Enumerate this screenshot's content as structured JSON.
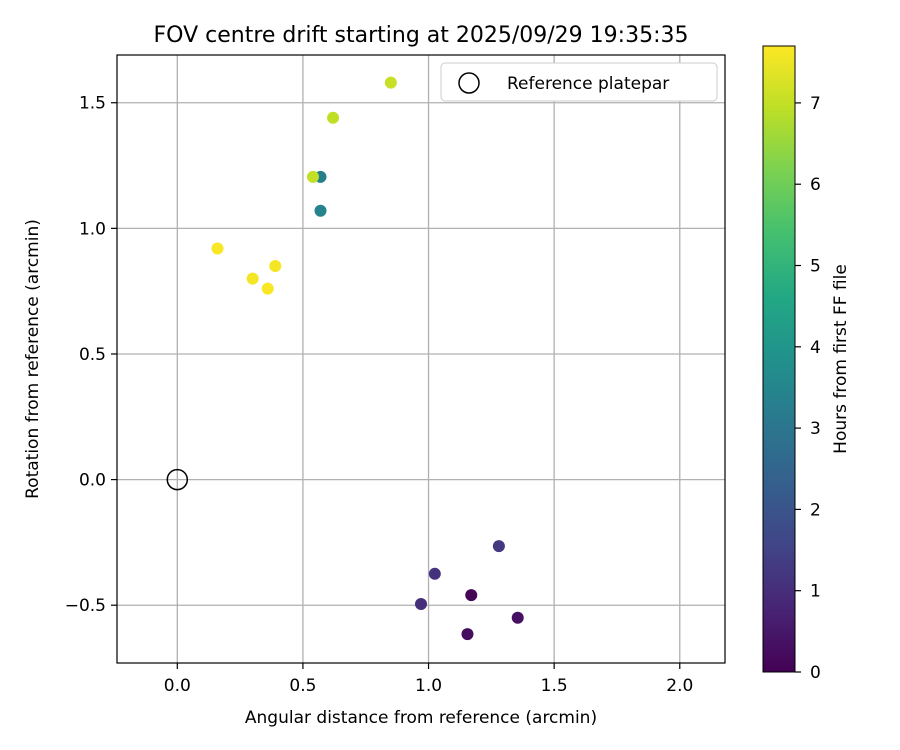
{
  "chart_data": {
    "type": "scatter",
    "title": "FOV centre drift starting at 2025/09/29 19:35:35",
    "xlabel": "Angular distance from reference (arcmin)",
    "ylabel": "Rotation from reference (arcmin)",
    "xlim": [
      -0.24,
      2.18
    ],
    "ylim": [
      -0.73,
      1.69
    ],
    "xticks": [
      0.0,
      0.5,
      1.0,
      1.5,
      2.0
    ],
    "xtick_labels": [
      "0.0",
      "0.5",
      "1.0",
      "1.5",
      "2.0"
    ],
    "yticks": [
      -0.5,
      0.0,
      0.5,
      1.0,
      1.5
    ],
    "ytick_labels": [
      "−0.5",
      "0.0",
      "0.5",
      "1.0",
      "1.5"
    ],
    "grid": true,
    "legend": {
      "position": "top-right",
      "entries": [
        "Reference platepar"
      ]
    },
    "reference_point": {
      "x": 0.0,
      "y": 0.0,
      "label": "Reference platepar"
    },
    "colorbar": {
      "label": "Hours from first FF file",
      "min": 0,
      "max": 7.7,
      "ticks": [
        0,
        1,
        2,
        3,
        4,
        5,
        6,
        7
      ],
      "tick_labels": [
        "0",
        "1",
        "2",
        "3",
        "4",
        "5",
        "6",
        "7"
      ],
      "colormap": "viridis"
    },
    "points": [
      {
        "x": 1.17,
        "y": -0.46,
        "hours": 0.1
      },
      {
        "x": 1.155,
        "y": -0.615,
        "hours": 0.25
      },
      {
        "x": 1.355,
        "y": -0.55,
        "hours": 0.35
      },
      {
        "x": 0.97,
        "y": -0.495,
        "hours": 1.0
      },
      {
        "x": 1.025,
        "y": -0.375,
        "hours": 1.1
      },
      {
        "x": 1.28,
        "y": -0.265,
        "hours": 1.25
      },
      {
        "x": 0.57,
        "y": 1.205,
        "hours": 3.3
      },
      {
        "x": 0.57,
        "y": 1.07,
        "hours": 3.4
      },
      {
        "x": 0.54,
        "y": 1.205,
        "hours": 7.0
      },
      {
        "x": 0.62,
        "y": 1.44,
        "hours": 6.95
      },
      {
        "x": 0.85,
        "y": 1.58,
        "hours": 7.05
      },
      {
        "x": 0.16,
        "y": 0.92,
        "hours": 7.65
      },
      {
        "x": 0.3,
        "y": 0.8,
        "hours": 7.6
      },
      {
        "x": 0.36,
        "y": 0.76,
        "hours": 7.65
      },
      {
        "x": 0.39,
        "y": 0.85,
        "hours": 7.6
      }
    ]
  }
}
